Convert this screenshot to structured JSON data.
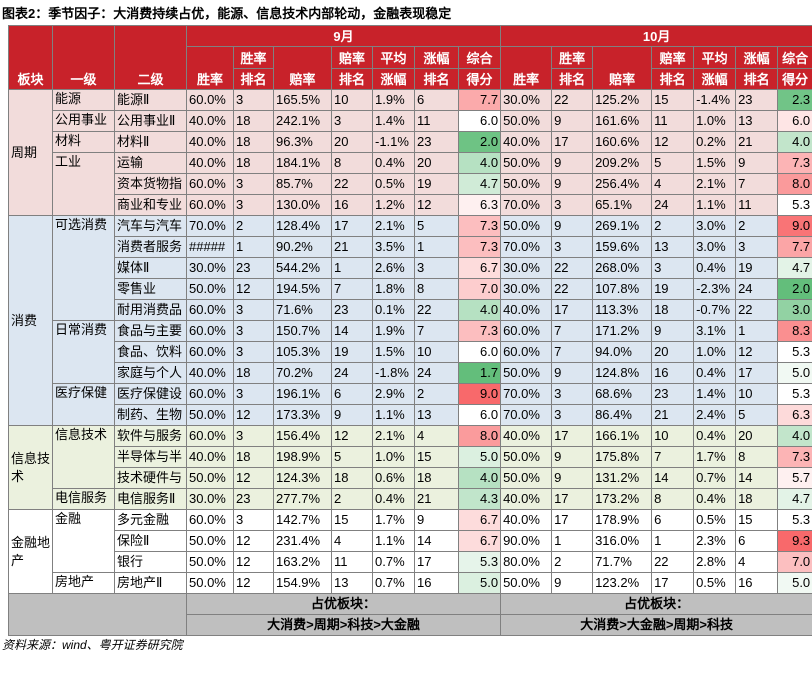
{
  "title": "图表2：季节因子：大消费持续占优，能源、信息技术内部轮动，金融表现稳定",
  "left_headers": [
    "板块",
    "一级",
    "二级"
  ],
  "columns": [
    {
      "bottom": "胜率"
    },
    {
      "top": "胜率",
      "bottom": "排名"
    },
    {
      "bottom": "赔率"
    },
    {
      "top": "赔率",
      "bottom": "排名"
    },
    {
      "top": "平均",
      "bottom": "涨幅"
    },
    {
      "top": "涨幅",
      "bottom": "排名"
    },
    {
      "top": "综合",
      "bottom": "得分"
    }
  ],
  "months": [
    {
      "name": "9月",
      "footer_label": "占优板块：",
      "footer_text": "大消费>周期>科技>大金融"
    },
    {
      "name": "10月",
      "footer_label": "占优板块：",
      "footer_text": "大消费>大金融>周期>科技"
    }
  ],
  "sectors": [
    {
      "name": "周期",
      "color": "#f2dcdb",
      "groups": [
        {
          "name": "能源",
          "rows": [
            {
              "name": "能源Ⅱ",
              "months": [
                [
                  "60.0%",
                  "3",
                  "165.5%",
                  "10",
                  "1.9%",
                  "6",
                  "7.7"
                ],
                [
                  "30.0%",
                  "22",
                  "125.2%",
                  "15",
                  "-1.4%",
                  "23",
                  "2.3"
                ]
              ]
            }
          ]
        },
        {
          "name": "公用事业",
          "rows": [
            {
              "name": "公用事业Ⅱ",
              "months": [
                [
                  "40.0%",
                  "18",
                  "242.1%",
                  "3",
                  "1.4%",
                  "11",
                  "6.0"
                ],
                [
                  "50.0%",
                  "9",
                  "161.6%",
                  "11",
                  "1.0%",
                  "13",
                  "6.0"
                ]
              ]
            }
          ]
        },
        {
          "name": "材料",
          "rows": [
            {
              "name": "材料Ⅱ",
              "months": [
                [
                  "40.0%",
                  "18",
                  "96.3%",
                  "20",
                  "-1.1%",
                  "23",
                  "2.0"
                ],
                [
                  "40.0%",
                  "17",
                  "160.6%",
                  "12",
                  "0.2%",
                  "21",
                  "4.0"
                ]
              ]
            }
          ]
        },
        {
          "name": "工业",
          "rows": [
            {
              "name": "运输",
              "months": [
                [
                  "40.0%",
                  "18",
                  "184.1%",
                  "8",
                  "0.4%",
                  "20",
                  "4.0"
                ],
                [
                  "50.0%",
                  "9",
                  "209.2%",
                  "5",
                  "1.5%",
                  "9",
                  "7.3"
                ]
              ]
            },
            {
              "name": "资本货物指",
              "months": [
                [
                  "60.0%",
                  "3",
                  "85.7%",
                  "22",
                  "0.5%",
                  "19",
                  "4.7"
                ],
                [
                  "50.0%",
                  "9",
                  "256.4%",
                  "4",
                  "2.1%",
                  "7",
                  "8.0"
                ]
              ]
            },
            {
              "name": "商业和专业",
              "months": [
                [
                  "60.0%",
                  "3",
                  "130.0%",
                  "16",
                  "1.2%",
                  "12",
                  "6.3"
                ],
                [
                  "70.0%",
                  "3",
                  "65.1%",
                  "24",
                  "1.1%",
                  "11",
                  "5.3"
                ]
              ]
            }
          ]
        }
      ]
    },
    {
      "name": "消费",
      "color": "#dce6f1",
      "groups": [
        {
          "name": "可选消费",
          "rows": [
            {
              "name": "汽车与汽车",
              "months": [
                [
                  "70.0%",
                  "2",
                  "128.4%",
                  "17",
                  "2.1%",
                  "5",
                  "7.3"
                ],
                [
                  "50.0%",
                  "9",
                  "269.1%",
                  "2",
                  "3.0%",
                  "2",
                  "9.0"
                ]
              ]
            },
            {
              "name": "消费者服务",
              "months": [
                [
                  "#####",
                  "1",
                  "90.2%",
                  "21",
                  "3.5%",
                  "1",
                  "7.3"
                ],
                [
                  "70.0%",
                  "3",
                  "159.6%",
                  "13",
                  "3.0%",
                  "3",
                  "7.7"
                ]
              ]
            },
            {
              "name": "媒体Ⅱ",
              "months": [
                [
                  "30.0%",
                  "23",
                  "544.2%",
                  "1",
                  "2.6%",
                  "3",
                  "6.7"
                ],
                [
                  "30.0%",
                  "22",
                  "268.0%",
                  "3",
                  "0.4%",
                  "19",
                  "4.7"
                ]
              ]
            },
            {
              "name": "零售业",
              "months": [
                [
                  "50.0%",
                  "12",
                  "194.5%",
                  "7",
                  "1.8%",
                  "8",
                  "7.0"
                ],
                [
                  "30.0%",
                  "22",
                  "107.8%",
                  "19",
                  "-2.3%",
                  "24",
                  "2.0"
                ]
              ]
            },
            {
              "name": "耐用消费品",
              "months": [
                [
                  "60.0%",
                  "3",
                  "71.6%",
                  "23",
                  "0.1%",
                  "22",
                  "4.0"
                ],
                [
                  "40.0%",
                  "17",
                  "113.3%",
                  "18",
                  "-0.7%",
                  "22",
                  "3.0"
                ]
              ]
            }
          ]
        },
        {
          "name": "日常消费",
          "rows": [
            {
              "name": "食品与主要",
              "months": [
                [
                  "60.0%",
                  "3",
                  "150.7%",
                  "14",
                  "1.9%",
                  "7",
                  "7.3"
                ],
                [
                  "60.0%",
                  "7",
                  "171.2%",
                  "9",
                  "3.1%",
                  "1",
                  "8.3"
                ]
              ]
            },
            {
              "name": "食品、饮料",
              "months": [
                [
                  "60.0%",
                  "3",
                  "105.3%",
                  "19",
                  "1.5%",
                  "10",
                  "6.0"
                ],
                [
                  "60.0%",
                  "7",
                  "94.0%",
                  "20",
                  "1.0%",
                  "12",
                  "5.3"
                ]
              ]
            },
            {
              "name": "家庭与个人",
              "months": [
                [
                  "40.0%",
                  "18",
                  "70.2%",
                  "24",
                  "-1.8%",
                  "24",
                  "1.7"
                ],
                [
                  "50.0%",
                  "9",
                  "124.8%",
                  "16",
                  "0.4%",
                  "17",
                  "5.0"
                ]
              ]
            }
          ]
        },
        {
          "name": "医疗保健",
          "rows": [
            {
              "name": "医疗保健设",
              "months": [
                [
                  "60.0%",
                  "3",
                  "196.1%",
                  "6",
                  "2.9%",
                  "2",
                  "9.0"
                ],
                [
                  "70.0%",
                  "3",
                  "68.6%",
                  "23",
                  "1.4%",
                  "10",
                  "5.3"
                ]
              ]
            },
            {
              "name": "制药、生物",
              "months": [
                [
                  "50.0%",
                  "12",
                  "173.3%",
                  "9",
                  "1.1%",
                  "13",
                  "6.0"
                ],
                [
                  "70.0%",
                  "3",
                  "86.4%",
                  "21",
                  "2.4%",
                  "5",
                  "6.3"
                ]
              ]
            }
          ]
        }
      ]
    },
    {
      "name": "信息技术",
      "color": "#ebf1de",
      "groups": [
        {
          "name": "信息技术",
          "rows": [
            {
              "name": "软件与服务",
              "months": [
                [
                  "60.0%",
                  "3",
                  "156.4%",
                  "12",
                  "2.1%",
                  "4",
                  "8.0"
                ],
                [
                  "40.0%",
                  "17",
                  "166.1%",
                  "10",
                  "0.4%",
                  "20",
                  "4.0"
                ]
              ]
            },
            {
              "name": "半导体与半",
              "months": [
                [
                  "40.0%",
                  "18",
                  "198.9%",
                  "5",
                  "1.0%",
                  "15",
                  "5.0"
                ],
                [
                  "50.0%",
                  "9",
                  "175.8%",
                  "7",
                  "1.7%",
                  "8",
                  "7.3"
                ]
              ]
            },
            {
              "name": "技术硬件与",
              "months": [
                [
                  "50.0%",
                  "12",
                  "124.3%",
                  "18",
                  "0.6%",
                  "18",
                  "4.0"
                ],
                [
                  "50.0%",
                  "9",
                  "131.2%",
                  "14",
                  "0.7%",
                  "14",
                  "5.7"
                ]
              ]
            }
          ]
        },
        {
          "name": "电信服务",
          "rows": [
            {
              "name": "电信服务Ⅱ",
              "months": [
                [
                  "30.0%",
                  "23",
                  "277.7%",
                  "2",
                  "0.4%",
                  "21",
                  "4.3"
                ],
                [
                  "40.0%",
                  "17",
                  "173.2%",
                  "8",
                  "0.4%",
                  "18",
                  "4.7"
                ]
              ]
            }
          ]
        }
      ]
    },
    {
      "name": "金融地产",
      "color": "#ffffff",
      "groups": [
        {
          "name": "金融",
          "rows": [
            {
              "name": "多元金融",
              "months": [
                [
                  "60.0%",
                  "3",
                  "142.7%",
                  "15",
                  "1.7%",
                  "9",
                  "6.7"
                ],
                [
                  "40.0%",
                  "17",
                  "178.9%",
                  "6",
                  "0.5%",
                  "15",
                  "5.3"
                ]
              ]
            },
            {
              "name": "保险Ⅱ",
              "months": [
                [
                  "50.0%",
                  "12",
                  "231.4%",
                  "4",
                  "1.1%",
                  "14",
                  "6.7"
                ],
                [
                  "90.0%",
                  "1",
                  "316.0%",
                  "1",
                  "2.3%",
                  "6",
                  "9.3"
                ]
              ]
            },
            {
              "name": "银行",
              "months": [
                [
                  "50.0%",
                  "12",
                  "163.2%",
                  "11",
                  "0.7%",
                  "17",
                  "5.3"
                ],
                [
                  "80.0%",
                  "2",
                  "71.7%",
                  "22",
                  "2.8%",
                  "4",
                  "7.0"
                ]
              ]
            }
          ]
        },
        {
          "name": "房地产",
          "rows": [
            {
              "name": "房地产Ⅱ",
              "months": [
                [
                  "50.0%",
                  "12",
                  "154.9%",
                  "13",
                  "0.7%",
                  "16",
                  "5.0"
                ],
                [
                  "50.0%",
                  "9",
                  "123.2%",
                  "17",
                  "0.5%",
                  "16",
                  "5.0"
                ]
              ]
            }
          ]
        }
      ]
    }
  ],
  "source": "资料来源：wind、粤开证券研究院"
}
